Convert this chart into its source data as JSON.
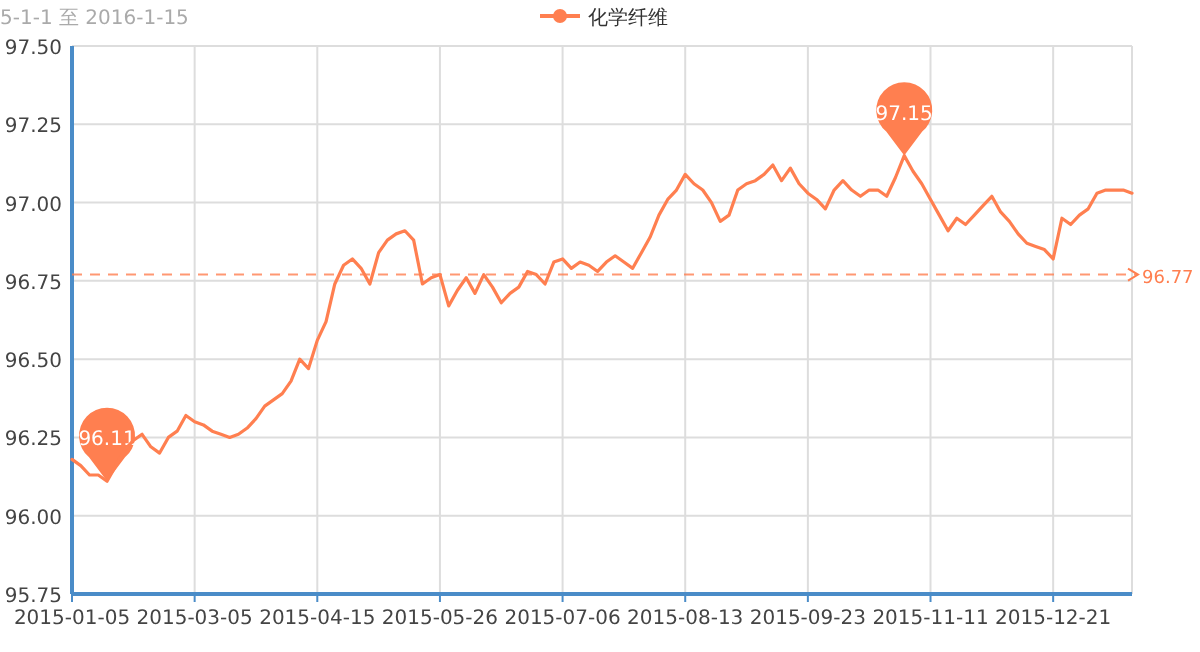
{
  "chart_data": {
    "type": "line",
    "subtitle": "5-1-1 至 2016-1-15",
    "categories": [
      "2015-01-05",
      null,
      null,
      null,
      null,
      null,
      null,
      null,
      null,
      null,
      null,
      null,
      null,
      null,
      "2015-03-05",
      null,
      null,
      null,
      null,
      null,
      null,
      null,
      null,
      null,
      null,
      null,
      null,
      null,
      "2015-04-15",
      null,
      null,
      null,
      null,
      null,
      null,
      null,
      null,
      null,
      null,
      null,
      null,
      null,
      "2015-05-26",
      null,
      null,
      null,
      null,
      null,
      null,
      null,
      null,
      null,
      null,
      null,
      null,
      null,
      "2015-07-06",
      null,
      null,
      null,
      null,
      null,
      null,
      null,
      null,
      null,
      null,
      null,
      null,
      null,
      "2015-08-13",
      null,
      null,
      null,
      null,
      null,
      null,
      null,
      null,
      null,
      null,
      null,
      null,
      null,
      "2015-09-23",
      null,
      null,
      null,
      null,
      null,
      null,
      null,
      null,
      null,
      null,
      null,
      null,
      null,
      "2015-11-11",
      null,
      null,
      null,
      null,
      null,
      null,
      null,
      null,
      null,
      null,
      null,
      null,
      null,
      "2015-12-21",
      null,
      null,
      null,
      null,
      null,
      null,
      null,
      null,
      null
    ],
    "series": [
      {
        "name": "化学纤维",
        "color": "#ff7f50",
        "values": [
          96.18,
          96.16,
          96.13,
          96.13,
          96.11,
          96.16,
          96.21,
          96.24,
          96.26,
          96.22,
          96.2,
          96.25,
          96.27,
          96.32,
          96.3,
          96.29,
          96.27,
          96.26,
          96.25,
          96.26,
          96.28,
          96.31,
          96.35,
          96.37,
          96.39,
          96.43,
          96.5,
          96.47,
          96.56,
          96.62,
          96.74,
          96.8,
          96.82,
          96.79,
          96.74,
          96.84,
          96.88,
          96.9,
          96.91,
          96.88,
          96.74,
          96.76,
          96.77,
          96.67,
          96.72,
          96.76,
          96.71,
          96.77,
          96.73,
          96.68,
          96.71,
          96.73,
          96.78,
          96.77,
          96.74,
          96.81,
          96.82,
          96.79,
          96.81,
          96.8,
          96.78,
          96.81,
          96.83,
          96.81,
          96.79,
          96.84,
          96.89,
          96.96,
          97.01,
          97.04,
          97.09,
          97.06,
          97.04,
          97.0,
          96.94,
          96.96,
          97.04,
          97.06,
          97.07,
          97.09,
          97.12,
          97.07,
          97.11,
          97.06,
          97.03,
          97.01,
          96.98,
          97.04,
          97.07,
          97.04,
          97.02,
          97.04,
          97.04,
          97.02,
          97.08,
          97.15,
          97.1,
          97.06,
          97.01,
          96.96,
          96.91,
          96.95,
          96.93,
          96.96,
          96.99,
          97.02,
          96.97,
          96.94,
          96.9,
          96.87,
          96.86,
          96.85,
          96.82,
          96.95,
          96.93,
          96.96,
          96.98,
          97.03,
          97.04,
          97.04,
          97.04,
          97.03
        ]
      }
    ],
    "ylim": [
      95.75,
      97.5
    ],
    "yticks": [
      {
        "value": 95.75,
        "label": "95.75"
      },
      {
        "value": 96,
        "label": "96.00"
      },
      {
        "value": 96.25,
        "label": "96.25"
      },
      {
        "value": 96.5,
        "label": "96.50"
      },
      {
        "value": 96.75,
        "label": "96.75"
      },
      {
        "value": 97,
        "label": "97.00"
      },
      {
        "value": 97.25,
        "label": "97.25"
      },
      {
        "value": 97.5,
        "label": "97.50"
      }
    ],
    "ref_lines": [
      {
        "axis": "y",
        "value": 96.77,
        "label": "96.77",
        "color": "#ff7f50",
        "line_style": "dashed"
      }
    ],
    "annotations": [
      {
        "text": "96.11",
        "y": 96.11
      },
      {
        "text": "97.15",
        "y": 97.15
      }
    ],
    "grid": true,
    "legend": "top"
  }
}
